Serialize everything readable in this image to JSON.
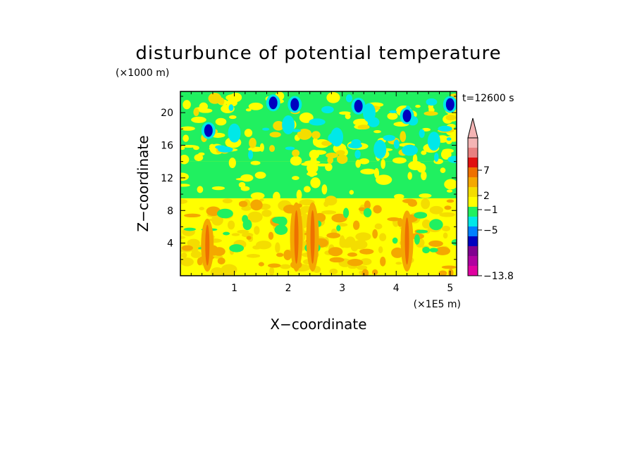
{
  "chart_data": {
    "type": "heatmap",
    "title": "disturbunce of potential temperature",
    "xlabel": "X−coordinate",
    "ylabel": "Z−coordinate",
    "x_unit": "(×1E5 m)",
    "y_unit": "(×1000 m)",
    "time_label": "t=12600 s",
    "xlim": [
      0,
      5.12
    ],
    "ylim": [
      0,
      22.6
    ],
    "x_ticks": [
      1,
      2,
      3,
      4,
      5
    ],
    "y_ticks": [
      4,
      8,
      12,
      16,
      20
    ],
    "colorbar": {
      "levels_ticks": [
        "7",
        "2",
        "−1",
        "−5",
        "−13.8"
      ],
      "bins": [
        {
          "color": "#f4b4b4"
        },
        {
          "color": "#e88080"
        },
        {
          "color": "#e01010"
        },
        {
          "color": "#ee7000"
        },
        {
          "color": "#f4a800"
        },
        {
          "color": "#f4dd00"
        },
        {
          "color": "#ffff00"
        },
        {
          "color": "#20f060"
        },
        {
          "color": "#00e8e8"
        },
        {
          "color": "#0080ff"
        },
        {
          "color": "#0000c0"
        },
        {
          "color": "#800090"
        },
        {
          "color": "#b000a0"
        },
        {
          "color": "#e000a0"
        }
      ]
    },
    "field_layers": [
      {
        "z_range": [
          0,
          9.5
        ],
        "dominant_color": "#ffff00",
        "note": "positive anomaly layer with orange streaks"
      },
      {
        "z_range": [
          9.5,
          14
        ],
        "dominant_color": "#20f060"
      },
      {
        "z_range": [
          14,
          22.6
        ],
        "dominant_color": "#20f060",
        "note": "yellow/orange plumes and cyan/blue cells"
      }
    ],
    "features": [
      {
        "kind": "plume",
        "x": 0.5,
        "z_range": [
          0.5,
          7
        ],
        "value": 2
      },
      {
        "kind": "plume",
        "x": 2.15,
        "z_range": [
          0.5,
          9
        ],
        "value": 2
      },
      {
        "kind": "plume",
        "x": 2.45,
        "z_range": [
          0.5,
          9
        ],
        "value": 2
      },
      {
        "kind": "plume",
        "x": 4.2,
        "z_range": [
          0.5,
          8
        ],
        "value": 2
      },
      {
        "kind": "cell",
        "x": 4.2,
        "z": 19.6,
        "value": -5
      },
      {
        "kind": "cell",
        "x": 3.3,
        "z": 20.8,
        "value": -5
      },
      {
        "kind": "cell",
        "x": 2.12,
        "z": 21.0,
        "value": -5
      },
      {
        "kind": "cell",
        "x": 5.0,
        "z": 21.0,
        "value": -5
      },
      {
        "kind": "cell",
        "x": 0.52,
        "z": 17.8,
        "value": -5
      },
      {
        "kind": "cell",
        "x": 1.72,
        "z": 21.2,
        "value": -5
      },
      {
        "kind": "cell",
        "x": 1.0,
        "z": 17.5,
        "value": -1
      },
      {
        "kind": "cell",
        "x": 2.9,
        "z": 17.0,
        "value": -1
      },
      {
        "kind": "cell",
        "x": 3.7,
        "z": 15.5,
        "value": -1
      },
      {
        "kind": "cell",
        "x": 4.7,
        "z": 16.5,
        "value": -1
      },
      {
        "kind": "cell",
        "x": 2.0,
        "z": 18.5,
        "value": -1
      },
      {
        "kind": "cell",
        "x": 3.5,
        "z": 20.0,
        "value": -1
      }
    ]
  }
}
